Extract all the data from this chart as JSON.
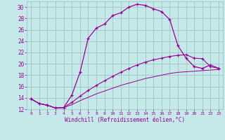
{
  "xlabel": "Windchill (Refroidissement éolien,°C)",
  "bg_color": "#c5e8e8",
  "line_color": "#990099",
  "grid_color": "#9bbfbf",
  "xlim": [
    -0.5,
    23.5
  ],
  "ylim": [
    12,
    31
  ],
  "xticks": [
    0,
    1,
    2,
    3,
    4,
    5,
    6,
    7,
    8,
    9,
    10,
    11,
    12,
    13,
    14,
    15,
    16,
    17,
    18,
    19,
    20,
    21,
    22,
    23
  ],
  "yticks": [
    12,
    14,
    16,
    18,
    20,
    22,
    24,
    26,
    28,
    30
  ],
  "line1_x": [
    0,
    1,
    2,
    3,
    4,
    5,
    6,
    7,
    8,
    9,
    10,
    11,
    12,
    13,
    14,
    15,
    16,
    17,
    18,
    19,
    20,
    21,
    22,
    23
  ],
  "line1_y": [
    13.8,
    13.0,
    12.7,
    12.2,
    12.3,
    14.5,
    18.5,
    24.5,
    26.3,
    27.0,
    28.5,
    29.0,
    30.0,
    30.5,
    30.3,
    29.7,
    29.2,
    27.8,
    23.2,
    21.0,
    19.5,
    19.2,
    19.8,
    19.2
  ],
  "line2_x": [
    0,
    1,
    2,
    3,
    4,
    5,
    6,
    7,
    8,
    9,
    10,
    11,
    12,
    13,
    14,
    15,
    16,
    17,
    18,
    19,
    20,
    21,
    22,
    23
  ],
  "line2_y": [
    13.8,
    13.0,
    12.7,
    12.2,
    12.3,
    13.2,
    14.3,
    15.3,
    16.2,
    17.0,
    17.8,
    18.5,
    19.2,
    19.8,
    20.3,
    20.7,
    21.0,
    21.3,
    21.5,
    21.6,
    21.0,
    20.9,
    19.5,
    19.2
  ],
  "line3_x": [
    0,
    1,
    2,
    3,
    4,
    5,
    6,
    7,
    8,
    9,
    10,
    11,
    12,
    13,
    14,
    15,
    16,
    17,
    18,
    19,
    20,
    21,
    22,
    23
  ],
  "line3_y": [
    13.8,
    13.0,
    12.7,
    12.2,
    12.3,
    12.8,
    13.5,
    14.1,
    14.7,
    15.2,
    15.7,
    16.2,
    16.6,
    17.0,
    17.4,
    17.7,
    18.0,
    18.3,
    18.5,
    18.6,
    18.7,
    18.8,
    18.9,
    19.0
  ]
}
